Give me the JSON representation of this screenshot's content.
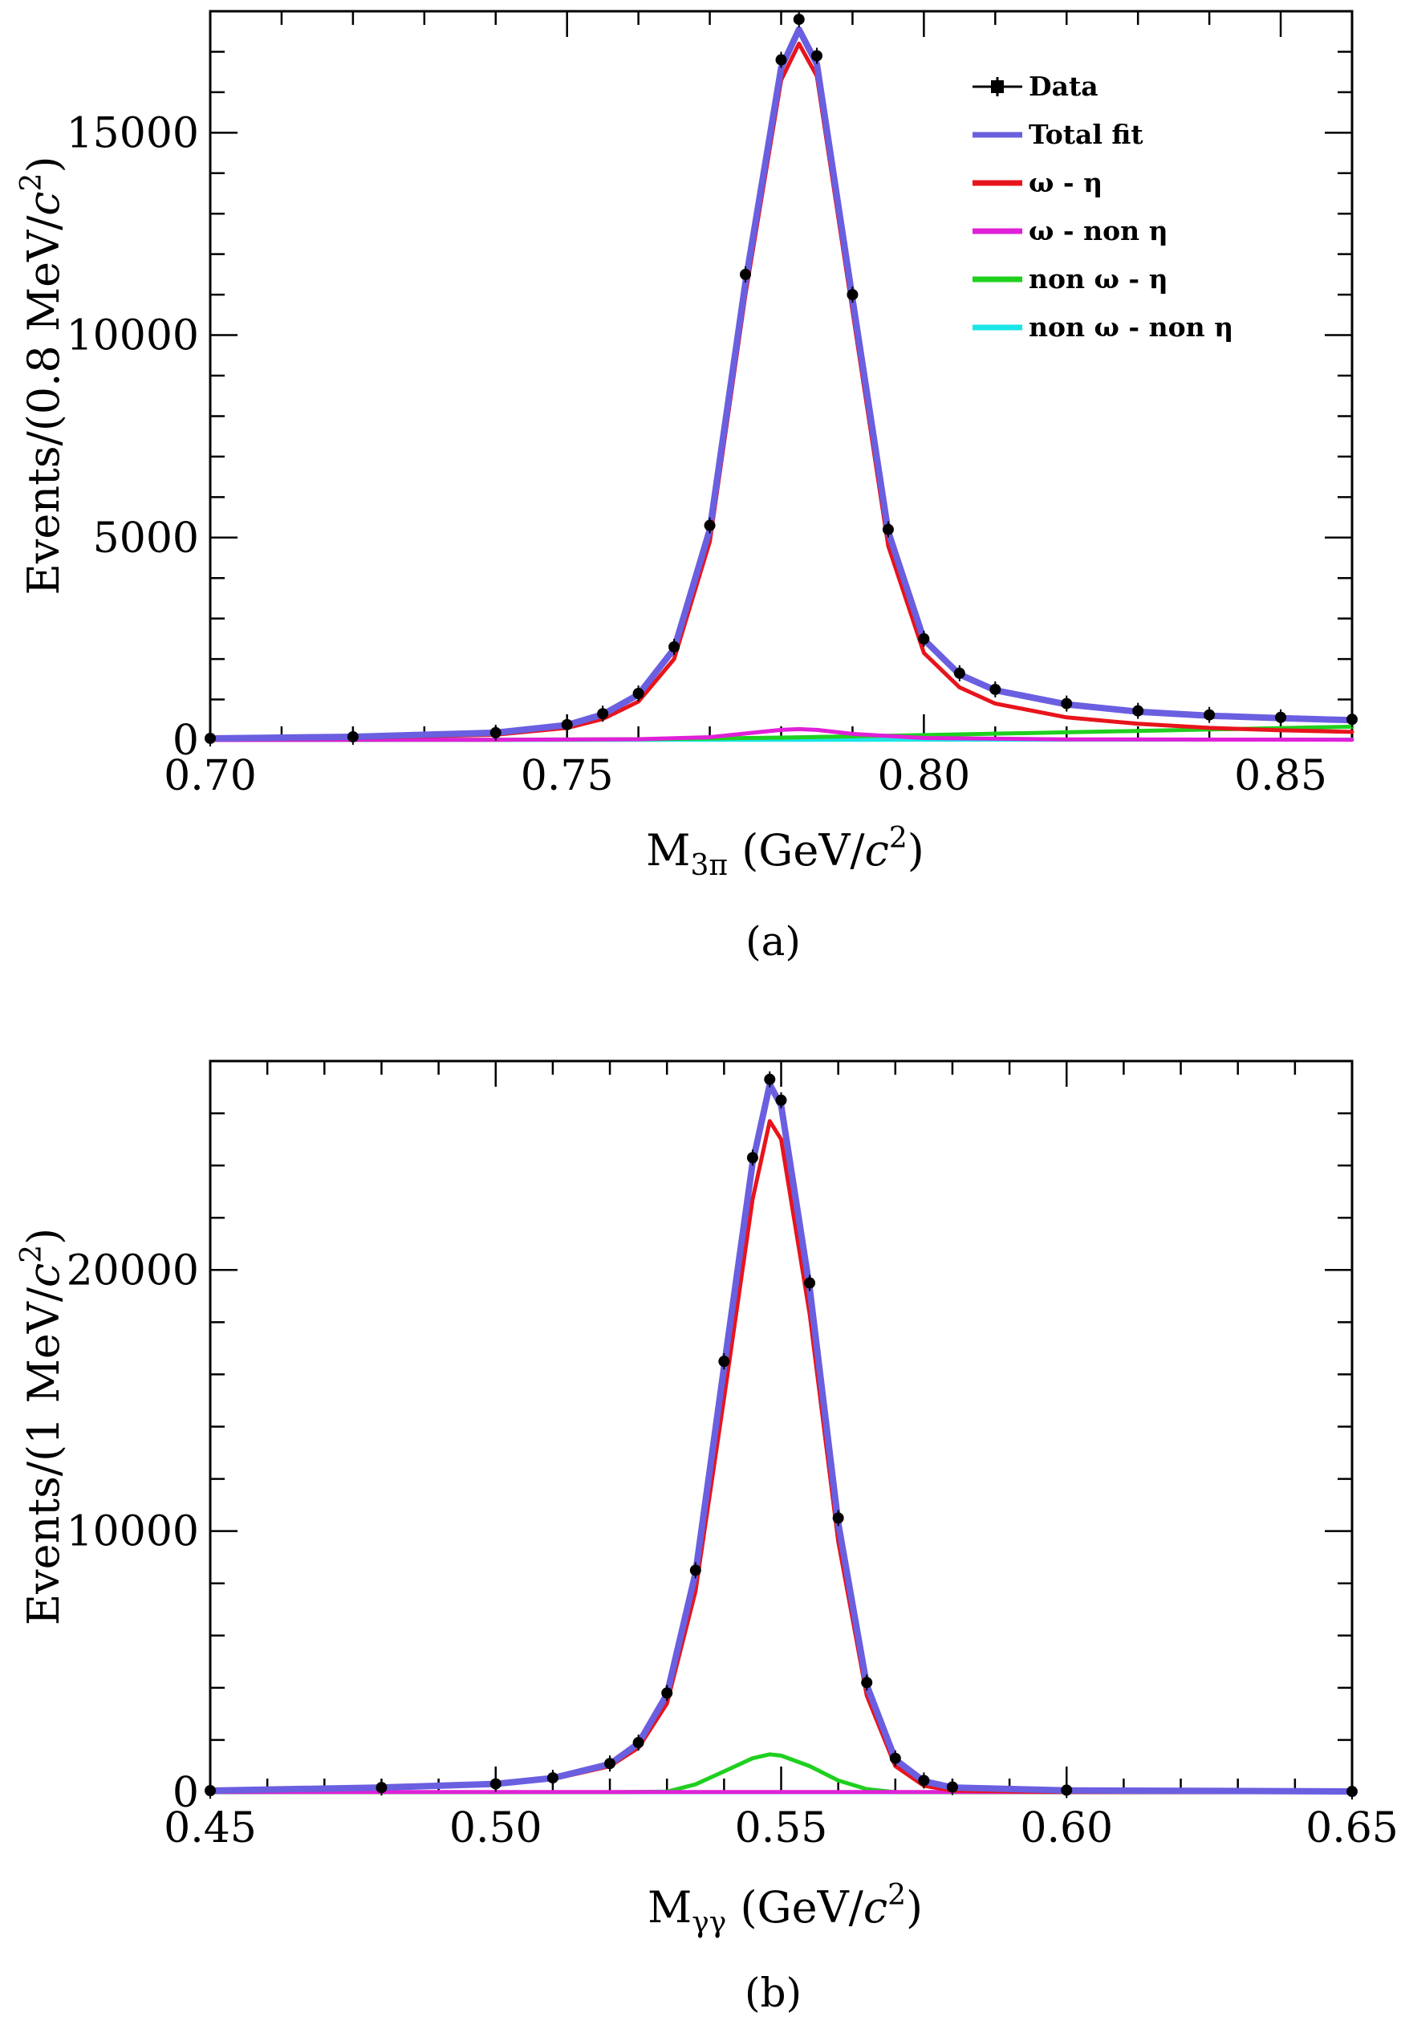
{
  "chart_data": [
    {
      "type": "line",
      "panel_label": "(a)",
      "xlabel": "M3π (GeV/c2)",
      "xlabel_main": "M",
      "xlabel_sub": "3π",
      "xlabel_rest": " (GeV/",
      "xlabel_c": "c",
      "xlabel_sup": "2",
      "xlabel_close": ")",
      "ylabel": "Events/(0.8 MeV/c2)",
      "ylabel_main": "Events/(0.8 MeV/",
      "ylabel_c": "c",
      "ylabel_sup": "2",
      "ylabel_close": ")",
      "xlim": [
        0.7,
        0.86
      ],
      "ylim": [
        0,
        18000
      ],
      "xticks": [
        0.7,
        0.75,
        0.8,
        0.85
      ],
      "xtick_labels": [
        "0.70",
        "0.75",
        "0.80",
        "0.85"
      ],
      "yticks": [
        0,
        5000,
        10000,
        15000
      ],
      "ytick_labels": [
        "0",
        "5000",
        "10000",
        "15000"
      ],
      "legend_position": "top-right",
      "series": [
        {
          "name": "Data",
          "color": "#000000",
          "style": "points",
          "x": [
            0.7,
            0.72,
            0.74,
            0.75,
            0.755,
            0.76,
            0.765,
            0.77,
            0.775,
            0.78,
            0.7825,
            0.785,
            0.79,
            0.795,
            0.8,
            0.805,
            0.81,
            0.82,
            0.83,
            0.84,
            0.85,
            0.86
          ],
          "y": [
            40,
            80,
            180,
            380,
            650,
            1150,
            2300,
            5300,
            11500,
            16800,
            17800,
            16900,
            11000,
            5200,
            2500,
            1650,
            1250,
            900,
            720,
            620,
            560,
            510
          ]
        },
        {
          "name": "Total fit",
          "color": "#6a5fe0",
          "style": "line",
          "x": [
            0.7,
            0.72,
            0.74,
            0.75,
            0.755,
            0.76,
            0.765,
            0.77,
            0.775,
            0.78,
            0.7825,
            0.785,
            0.79,
            0.795,
            0.8,
            0.805,
            0.81,
            0.82,
            0.83,
            0.84,
            0.85,
            0.86
          ],
          "y": [
            40,
            80,
            180,
            370,
            630,
            1120,
            2250,
            5200,
            11300,
            16600,
            17550,
            16700,
            10900,
            5150,
            2480,
            1620,
            1230,
            880,
            700,
            600,
            540,
            490
          ]
        },
        {
          "name": "ω - η",
          "color": "#e8141c",
          "style": "line",
          "x": [
            0.7,
            0.72,
            0.74,
            0.75,
            0.755,
            0.76,
            0.765,
            0.77,
            0.775,
            0.78,
            0.7825,
            0.785,
            0.79,
            0.795,
            0.8,
            0.805,
            0.81,
            0.82,
            0.83,
            0.84,
            0.85,
            0.86
          ],
          "y": [
            20,
            50,
            130,
            300,
            520,
            950,
            2000,
            4900,
            11000,
            16300,
            17200,
            16400,
            10600,
            4800,
            2150,
            1300,
            900,
            560,
            400,
            300,
            240,
            200
          ]
        },
        {
          "name": "ω - non η",
          "color": "#e020d8",
          "style": "line",
          "x": [
            0.7,
            0.74,
            0.76,
            0.77,
            0.775,
            0.78,
            0.7825,
            0.785,
            0.79,
            0.8,
            0.82,
            0.86
          ],
          "y": [
            0,
            5,
            20,
            70,
            160,
            250,
            270,
            250,
            150,
            50,
            15,
            5
          ]
        },
        {
          "name": "non ω - η",
          "color": "#1fd01f",
          "style": "line",
          "x": [
            0.7,
            0.74,
            0.76,
            0.78,
            0.8,
            0.82,
            0.84,
            0.86
          ],
          "y": [
            0,
            5,
            20,
            60,
            120,
            190,
            260,
            330
          ]
        },
        {
          "name": "non ω - non η",
          "color": "#19e6e6",
          "style": "line",
          "x": [
            0.7,
            0.78,
            0.86
          ],
          "y": [
            0,
            5,
            10
          ]
        }
      ]
    },
    {
      "type": "line",
      "panel_label": "(b)",
      "xlabel": "Mγγ (GeV/c2)",
      "xlabel_main": "M",
      "xlabel_sub": "γγ",
      "xlabel_rest": " (GeV/",
      "xlabel_c": "c",
      "xlabel_sup": "2",
      "xlabel_close": ")",
      "ylabel": "Events/(1 MeV/c2)",
      "ylabel_main": "Events/(1 MeV/",
      "ylabel_c": "c",
      "ylabel_sup": "2",
      "ylabel_close": ")",
      "xlim": [
        0.45,
        0.65
      ],
      "ylim": [
        0,
        28000
      ],
      "xticks": [
        0.45,
        0.5,
        0.55,
        0.6,
        0.65
      ],
      "xtick_labels": [
        "0.45",
        "0.50",
        "0.55",
        "0.60",
        "0.65"
      ],
      "yticks": [
        0,
        10000,
        20000
      ],
      "ytick_labels": [
        "0",
        "10000",
        "20000"
      ],
      "series": [
        {
          "name": "Data",
          "color": "#000000",
          "style": "points",
          "x": [
            0.45,
            0.48,
            0.5,
            0.51,
            0.52,
            0.525,
            0.53,
            0.535,
            0.54,
            0.545,
            0.548,
            0.55,
            0.555,
            0.56,
            0.565,
            0.57,
            0.575,
            0.58,
            0.6,
            0.65
          ],
          "y": [
            60,
            180,
            320,
            550,
            1100,
            1900,
            3800,
            8500,
            16500,
            24300,
            27300,
            26500,
            19500,
            10500,
            4200,
            1300,
            450,
            200,
            80,
            30
          ]
        },
        {
          "name": "Total fit",
          "color": "#6a5fe0",
          "style": "line",
          "x": [
            0.45,
            0.48,
            0.5,
            0.51,
            0.52,
            0.525,
            0.53,
            0.535,
            0.54,
            0.545,
            0.548,
            0.55,
            0.555,
            0.56,
            0.565,
            0.57,
            0.575,
            0.58,
            0.6,
            0.65
          ],
          "y": [
            60,
            180,
            320,
            540,
            1080,
            1870,
            3750,
            8400,
            16300,
            24100,
            27100,
            26300,
            19300,
            10300,
            4100,
            1250,
            420,
            180,
            70,
            30
          ]
        },
        {
          "name": "ω - η",
          "color": "#e8141c",
          "style": "line",
          "x": [
            0.45,
            0.48,
            0.5,
            0.51,
            0.52,
            0.525,
            0.53,
            0.535,
            0.54,
            0.545,
            0.548,
            0.55,
            0.555,
            0.56,
            0.565,
            0.57,
            0.575,
            0.58,
            0.6,
            0.65
          ],
          "y": [
            50,
            160,
            290,
            500,
            1000,
            1700,
            3400,
            7700,
            15100,
            22700,
            25700,
            25000,
            18300,
            9600,
            3700,
            1000,
            250,
            60,
            10,
            0
          ]
        },
        {
          "name": "ω - non η",
          "color": "#e020d8",
          "style": "line",
          "x": [
            0.45,
            0.55,
            0.65
          ],
          "y": [
            5,
            8,
            5
          ]
        },
        {
          "name": "non ω - η",
          "color": "#1fd01f",
          "style": "line",
          "x": [
            0.45,
            0.52,
            0.53,
            0.535,
            0.54,
            0.545,
            0.548,
            0.55,
            0.555,
            0.56,
            0.565,
            0.57,
            0.65
          ],
          "y": [
            0,
            0,
            20,
            300,
            800,
            1300,
            1450,
            1400,
            1000,
            450,
            120,
            0,
            0
          ]
        },
        {
          "name": "non ω - non η",
          "color": "#19e6e6",
          "style": "line",
          "x": [
            0.45,
            0.65
          ],
          "y": [
            0,
            0
          ]
        }
      ]
    }
  ]
}
